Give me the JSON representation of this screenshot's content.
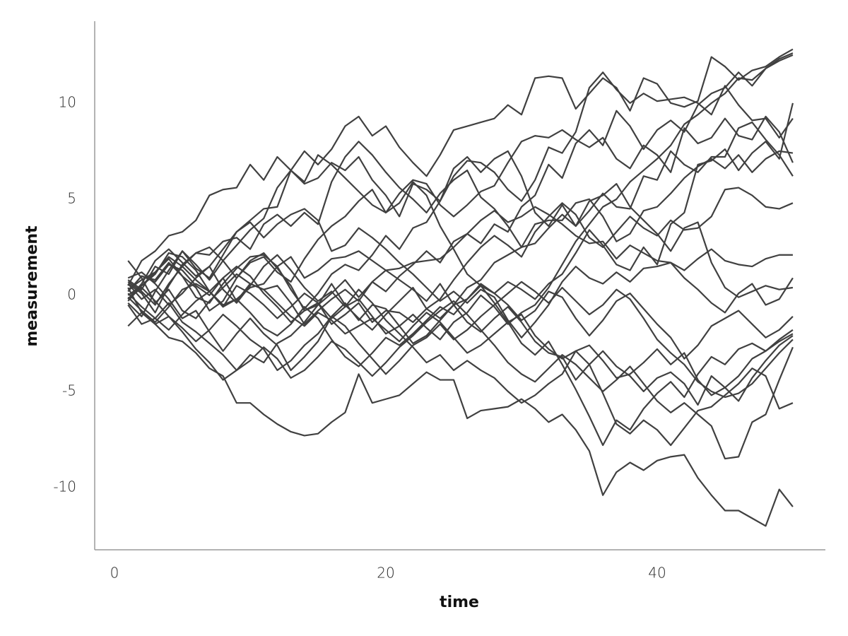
{
  "chart_data": {
    "type": "line",
    "x_label": "time",
    "y_label": "measurement",
    "color": "#404040",
    "xlim": [
      -1.46,
      52.4
    ],
    "ylim": [
      -13.24,
      14.26
    ],
    "xticks": [
      0,
      20,
      40
    ],
    "yticks": [
      -10,
      -5,
      0,
      5,
      10
    ],
    "grid": false,
    "x": [
      1,
      2,
      3,
      4,
      5,
      6,
      7,
      8,
      9,
      10,
      11,
      12,
      13,
      14,
      15,
      16,
      17,
      18,
      19,
      20,
      21,
      22,
      23,
      24,
      25,
      26,
      27,
      28,
      29,
      30,
      31,
      32,
      33,
      34,
      35,
      36,
      37,
      38,
      39,
      40,
      41,
      42,
      43,
      44,
      45,
      46,
      47,
      48,
      49,
      50
    ],
    "series": [
      {
        "values": [
          0.5,
          1.8,
          2.3,
          3.1,
          3.3,
          3.9,
          5.2,
          5.5,
          5.6,
          6.8,
          6.0,
          7.2,
          6.5,
          7.5,
          6.8,
          7.6,
          8.8,
          9.3,
          8.3,
          8.8,
          7.7,
          6.9,
          6.2,
          7.3,
          8.6,
          8.8,
          9.0,
          9.2,
          9.9,
          9.4,
          11.3,
          11.4,
          11.3,
          9.7,
          10.5,
          11.3,
          10.8,
          9.6,
          11.3,
          11.0,
          10.0,
          9.8,
          10.1,
          12.4,
          11.9,
          11.2,
          11.7,
          11.9,
          12.4,
          12.8
        ]
      },
      {
        "values": [
          -1.6,
          -0.9,
          -1.5,
          -2.2,
          -2.4,
          -3.0,
          -3.8,
          -4.2,
          -5.6,
          -5.6,
          -6.2,
          -6.7,
          -7.1,
          -7.3,
          -7.2,
          -6.6,
          -6.1,
          -4.1,
          -5.6,
          -5.4,
          -5.2,
          -4.6,
          -4.0,
          -4.4,
          -4.4,
          -6.4,
          -6.0,
          -5.9,
          -5.8,
          -5.4,
          -5.9,
          -6.6,
          -6.2,
          -7.0,
          -8.1,
          -10.4,
          -9.2,
          -8.7,
          -9.1,
          -8.6,
          -8.4,
          -8.3,
          -9.5,
          -10.4,
          -11.2,
          -11.2,
          -11.6,
          -12.0,
          -10.1,
          -11.0
        ]
      },
      {
        "values": [
          0.3,
          0.8,
          1.2,
          2.0,
          1.5,
          0.8,
          0.2,
          0.9,
          -0.3,
          0.6,
          0.3,
          0.5,
          -0.4,
          -1.5,
          -0.8,
          -0.2,
          0.3,
          -0.3,
          0.7,
          0.2,
          1.0,
          1.6,
          2.3,
          1.7,
          2.8,
          3.2,
          2.7,
          3.7,
          3.3,
          4.6,
          5.2,
          6.8,
          6.1,
          7.9,
          8.6,
          7.8,
          9.6,
          8.8,
          7.6,
          8.6,
          9.1,
          8.5,
          9.9,
          10.5,
          10.8,
          11.6,
          10.9,
          11.8,
          12.2,
          12.5
        ]
      },
      {
        "values": [
          0.1,
          -0.6,
          -1.2,
          -1.8,
          -1.0,
          -0.3,
          0.2,
          -0.6,
          0.5,
          0.1,
          -0.5,
          -1.2,
          -0.6,
          0.1,
          -0.4,
          -1.5,
          -1.0,
          -0.4,
          -1.4,
          -0.8,
          -0.9,
          -1.4,
          -0.7,
          -1.2,
          -0.5,
          -0.2,
          0.6,
          0.1,
          0.7,
          0.3,
          -0.2,
          0.6,
          1.1,
          2.2,
          3.4,
          2.6,
          1.6,
          1.3,
          2.5,
          1.6,
          3.7,
          4.3,
          6.8,
          7.0,
          7.6,
          6.5,
          7.4,
          8.0,
          7.1,
          10.0
        ]
      },
      {
        "values": [
          0.8,
          0.3,
          1.5,
          1.1,
          2.3,
          1.4,
          0.9,
          2.1,
          3.3,
          3.9,
          4.5,
          4.6,
          6.5,
          5.8,
          6.1,
          6.9,
          6.5,
          7.2,
          6.0,
          5.2,
          4.1,
          5.8,
          5.5,
          4.9,
          6.2,
          7.0,
          6.9,
          6.4,
          5.5,
          4.9,
          6.0,
          7.7,
          7.4,
          8.5,
          10.8,
          11.6,
          10.7,
          10.0,
          10.5,
          10.1,
          10.2,
          10.3,
          10.0,
          9.4,
          10.9,
          9.9,
          9.1,
          9.2,
          8.2,
          9.2
        ]
      },
      {
        "values": [
          0.6,
          0.1,
          -0.9,
          0.5,
          1.6,
          2.2,
          2.1,
          2.8,
          3.0,
          2.4,
          3.7,
          4.2,
          3.6,
          4.3,
          3.7,
          5.9,
          7.2,
          8.0,
          7.3,
          6.4,
          5.6,
          5.0,
          4.3,
          5.3,
          6.0,
          6.5,
          5.1,
          4.5,
          3.6,
          2.5,
          3.7,
          3.9,
          3.9,
          4.8,
          5.0,
          4.1,
          2.8,
          3.2,
          4.4,
          4.6,
          5.3,
          6.1,
          6.7,
          7.1,
          6.6,
          7.3,
          6.4,
          7.1,
          7.5,
          7.4
        ]
      },
      {
        "values": [
          -0.4,
          -1.1,
          0.2,
          1.3,
          2.3,
          1.6,
          0.8,
          1.8,
          2.6,
          3.4,
          4.0,
          5.6,
          6.5,
          5.9,
          7.3,
          6.8,
          6.1,
          5.4,
          4.7,
          4.3,
          5.3,
          6.0,
          5.8,
          4.7,
          4.1,
          4.7,
          5.4,
          5.7,
          6.9,
          8.0,
          8.3,
          8.2,
          8.6,
          8.1,
          7.7,
          8.2,
          7.1,
          6.6,
          7.8,
          7.3,
          6.4,
          8.7,
          7.9,
          8.2,
          9.2,
          8.3,
          8.1,
          9.3,
          8.5,
          6.9
        ]
      },
      {
        "values": [
          0.2,
          1.0,
          0.8,
          1.7,
          1.0,
          -0.1,
          -0.4,
          0.6,
          1.4,
          2.0,
          2.1,
          1.5,
          0.3,
          -0.7,
          0.1,
          1.1,
          1.6,
          1.3,
          2.1,
          3.1,
          2.4,
          3.5,
          3.8,
          4.9,
          6.6,
          7.2,
          6.4,
          7.1,
          7.5,
          6.2,
          4.3,
          3.6,
          4.7,
          3.6,
          4.4,
          5.3,
          4.6,
          4.5,
          6.2,
          6.0,
          7.5,
          6.8,
          6.4,
          7.2,
          7.2,
          8.7,
          9.0,
          8.1,
          7.3,
          6.2
        ]
      },
      {
        "values": [
          0.0,
          0.5,
          1.2,
          1.9,
          1.0,
          0.4,
          -0.8,
          -0.3,
          0.9,
          1.8,
          2.2,
          1.4,
          0.5,
          -0.8,
          -0.5,
          0.6,
          -0.5,
          -1.2,
          -1.8,
          -1.0,
          -0.3,
          0.4,
          -0.7,
          -0.2,
          0.8,
          1.7,
          2.5,
          3.1,
          2.6,
          2.0,
          3.3,
          4.1,
          4.8,
          4.2,
          3.0,
          2.5,
          3.3,
          4.1,
          3.5,
          3.1,
          3.9,
          3.4,
          3.5,
          4.1,
          5.5,
          5.6,
          5.2,
          4.6,
          4.5,
          4.8
        ]
      },
      {
        "values": [
          -0.3,
          0.5,
          1.1,
          2.2,
          2.0,
          1.3,
          0.2,
          -0.6,
          -0.2,
          0.4,
          0.6,
          1.5,
          2.0,
          0.9,
          1.3,
          1.9,
          2.0,
          2.3,
          1.8,
          1.3,
          1.4,
          1.7,
          1.8,
          1.9,
          2.5,
          3.2,
          3.9,
          4.4,
          3.8,
          4.1,
          4.6,
          4.2,
          3.7,
          3.1,
          2.7,
          2.8,
          1.9,
          2.6,
          2.2,
          1.8,
          1.7,
          1.3,
          1.9,
          2.4,
          1.8,
          1.6,
          1.5,
          1.9,
          2.1,
          2.1
        ]
      },
      {
        "values": [
          0.6,
          -0.2,
          0.3,
          -0.5,
          0.1,
          0.9,
          1.5,
          2.4,
          3.3,
          3.8,
          3.0,
          3.7,
          4.2,
          4.5,
          3.9,
          2.3,
          2.6,
          3.5,
          3.0,
          2.4,
          1.7,
          1.1,
          0.4,
          -0.3,
          0.2,
          -0.4,
          0.3,
          -0.1,
          -1.3,
          -2.2,
          -1.4,
          -0.5,
          0.7,
          1.5,
          0.9,
          0.6,
          1.2,
          0.7,
          1.4,
          1.5,
          1.7,
          0.9,
          0.3,
          -0.4,
          -0.9,
          0.1,
          0.6,
          -0.5,
          -0.2,
          0.9
        ]
      },
      {
        "values": [
          0.9,
          1.2,
          0.6,
          -0.2,
          -1.2,
          -0.8,
          -1.9,
          -2.9,
          -2.0,
          -1.2,
          -2.0,
          -2.6,
          -3.9,
          -3.2,
          -2.4,
          -1.1,
          -0.4,
          -1.3,
          -0.5,
          -0.7,
          -1.6,
          -2.5,
          -2.1,
          -1.3,
          -0.5,
          0.4,
          0.8,
          1.7,
          2.1,
          2.5,
          2.7,
          3.5,
          4.2,
          3.6,
          4.9,
          5.2,
          5.8,
          4.6,
          3.9,
          3.2,
          2.3,
          3.5,
          3.8,
          1.7,
          0.4,
          -0.1,
          0.2,
          0.5,
          0.3,
          0.4
        ]
      },
      {
        "values": [
          -0.1,
          -0.8,
          -1.4,
          -0.6,
          0.3,
          0.6,
          0.2,
          -0.5,
          -0.2,
          -0.9,
          -1.7,
          -2.1,
          -1.5,
          -0.6,
          -1.2,
          -2.3,
          -3.2,
          -3.7,
          -3.0,
          -2.2,
          -2.6,
          -2.0,
          -1.3,
          -0.6,
          -1.0,
          -0.2,
          0.5,
          0.1,
          -0.5,
          -1.3,
          -0.8,
          0.2,
          -0.1,
          -1.2,
          -2.1,
          -1.3,
          -0.3,
          0.1,
          -0.7,
          -1.5,
          -2.2,
          -3.3,
          -2.6,
          -1.6,
          -1.2,
          -0.8,
          -1.5,
          -2.2,
          -1.8,
          -1.1
        ]
      },
      {
        "values": [
          1.8,
          0.9,
          -0.4,
          0.3,
          -0.8,
          -1.2,
          -0.3,
          0.4,
          1.1,
          0.6,
          0.3,
          -0.4,
          -1.1,
          -1.6,
          -0.9,
          -1.3,
          -2.0,
          -1.6,
          -1.2,
          -1.8,
          -2.4,
          -1.6,
          -0.9,
          -1.4,
          -2.2,
          -3.0,
          -2.6,
          -2.0,
          -1.4,
          -1.0,
          -2.1,
          -2.8,
          -3.3,
          -2.9,
          -2.6,
          -3.4,
          -4.3,
          -4.1,
          -3.5,
          -2.8,
          -3.6,
          -3.0,
          -4.4,
          -5.2,
          -4.8,
          -4.2,
          -3.3,
          -2.9,
          -2.3,
          -1.8
        ]
      },
      {
        "values": [
          0.4,
          -0.9,
          -1.5,
          -1.1,
          -1.9,
          -2.8,
          -3.5,
          -4.4,
          -3.9,
          -3.1,
          -3.5,
          -2.5,
          -2.1,
          -1.4,
          -0.5,
          0.1,
          0.8,
          -0.1,
          0.7,
          1.3,
          0.8,
          0.3,
          -0.3,
          0.6,
          -0.5,
          -1.4,
          -1.9,
          -1.2,
          -0.6,
          -1.4,
          -2.4,
          -3.0,
          -3.2,
          -4.4,
          -3.6,
          -2.9,
          -3.7,
          -4.2,
          -5.0,
          -4.3,
          -4.0,
          -4.6,
          -5.7,
          -4.2,
          -4.8,
          -5.5,
          -4.3,
          -3.4,
          -2.6,
          -2.1
        ]
      },
      {
        "values": [
          -0.2,
          0.4,
          -0.3,
          -1.1,
          -1.7,
          -2.4,
          -1.8,
          -1.0,
          -1.6,
          -2.3,
          -2.8,
          -3.9,
          -3.4,
          -2.6,
          -2.0,
          -1.1,
          -1.6,
          -2.5,
          -3.3,
          -4.1,
          -3.4,
          -2.6,
          -2.2,
          -1.5,
          -2.3,
          -1.8,
          -1.1,
          -0.5,
          0.1,
          0.7,
          0.2,
          -0.4,
          0.4,
          -0.3,
          -1.0,
          -0.5,
          0.3,
          -0.2,
          -1.2,
          -2.3,
          -3.0,
          -3.6,
          -4.5,
          -5.0,
          -5.3,
          -5.1,
          -4.6,
          -3.8,
          -3.0,
          -2.3
        ]
      },
      {
        "values": [
          -0.5,
          -1.5,
          -1.2,
          -0.4,
          -1.4,
          -1.9,
          -2.5,
          -3.1,
          -3.9,
          -3.4,
          -2.7,
          -3.3,
          -4.3,
          -3.9,
          -3.2,
          -2.4,
          -2.8,
          -3.5,
          -4.2,
          -3.5,
          -2.7,
          -2.1,
          -1.4,
          -0.8,
          -0.3,
          -1.0,
          -1.8,
          -2.6,
          -3.5,
          -4.1,
          -4.5,
          -3.8,
          -3.1,
          -3.6,
          -4.3,
          -5.0,
          -4.4,
          -3.7,
          -4.6,
          -5.5,
          -6.1,
          -5.6,
          -6.2,
          -6.8,
          -8.5,
          -8.4,
          -6.6,
          -6.2,
          -4.4,
          -2.7
        ]
      },
      {
        "values": [
          0.2,
          1.0,
          0.7,
          1.6,
          1.3,
          0.5,
          0.0,
          0.9,
          1.5,
          1.0,
          0.1,
          -0.6,
          -1.4,
          -0.8,
          -0.4,
          -1.2,
          -0.6,
          0.3,
          -0.4,
          -1.3,
          -2.0,
          -2.7,
          -3.5,
          -3.1,
          -3.9,
          -3.4,
          -3.9,
          -4.3,
          -5.0,
          -5.6,
          -5.2,
          -4.6,
          -4.1,
          -2.9,
          -3.6,
          -5.1,
          -6.7,
          -7.2,
          -6.5,
          -7.0,
          -7.8,
          -6.9,
          -6.0,
          -5.8,
          -5.2,
          -4.6,
          -3.8,
          -4.2,
          -5.9,
          -5.6
        ]
      },
      {
        "values": [
          0.7,
          0.2,
          -0.5,
          0.6,
          1.5,
          2.2,
          2.5,
          1.8,
          0.9,
          1.7,
          2.0,
          1.2,
          0.7,
          1.9,
          2.9,
          3.6,
          4.1,
          4.9,
          5.5,
          4.3,
          4.8,
          5.9,
          5.2,
          3.6,
          2.4,
          1.1,
          0.5,
          -0.4,
          -1.4,
          -2.5,
          -3.1,
          -2.4,
          -3.6,
          -4.9,
          -6.3,
          -7.8,
          -6.5,
          -7.0,
          -5.9,
          -5.1,
          -4.5,
          -5.3,
          -4.1,
          -3.2,
          -3.6,
          -2.8,
          -2.5,
          -2.9,
          -2.4,
          -2.0
        ]
      },
      {
        "values": [
          -0.2,
          0.6,
          1.8,
          2.4,
          1.7,
          1.0,
          1.5,
          0.3,
          -0.4,
          0.5,
          1.5,
          2.1,
          1.3,
          0.4,
          -0.3,
          0.2,
          -0.6,
          -0.2,
          -1.1,
          -2.0,
          -1.6,
          -1.0,
          -1.7,
          -2.3,
          -1.4,
          -0.9,
          0.0,
          -0.6,
          -1.5,
          -0.9,
          -0.5,
          0.4,
          1.6,
          2.8,
          3.7,
          4.6,
          5.0,
          5.9,
          6.5,
          7.1,
          7.8,
          8.9,
          9.4,
          10.0,
          10.5,
          11.3,
          11.2,
          11.8,
          12.3,
          12.6
        ]
      }
    ]
  }
}
